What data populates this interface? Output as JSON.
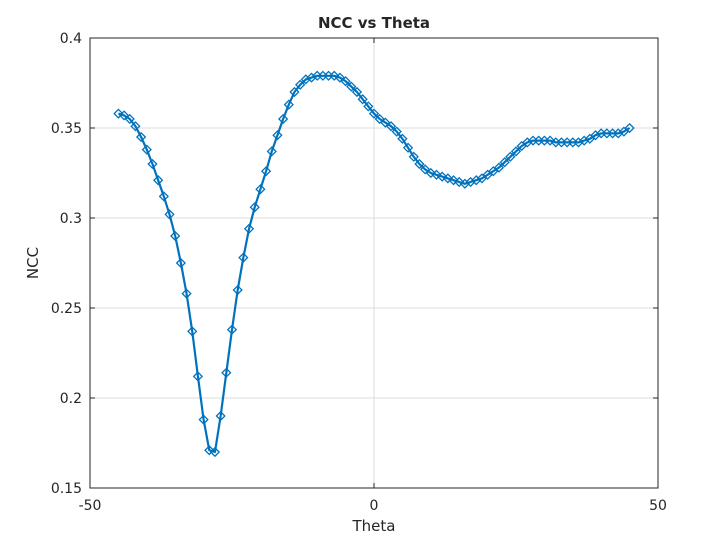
{
  "chart_data": {
    "type": "line",
    "title": "NCC vs Theta",
    "xlabel": "Theta",
    "ylabel": "NCC",
    "xlim": [
      -50,
      50
    ],
    "ylim": [
      0.15,
      0.4
    ],
    "xticks": [
      -50,
      0,
      50
    ],
    "xtick_labels": [
      "-50",
      "0",
      "50"
    ],
    "yticks": [
      0.15,
      0.2,
      0.25,
      0.3,
      0.35,
      0.4
    ],
    "ytick_labels": [
      "0.15",
      "0.2",
      "0.25",
      "0.3",
      "0.35",
      "0.4"
    ],
    "grid": true,
    "marker": "diamond",
    "color": "#0072BD",
    "series": [
      {
        "x": [
          -45,
          -44,
          -43,
          -42,
          -41,
          -40,
          -39,
          -38,
          -37,
          -36,
          -35,
          -34,
          -33,
          -32,
          -31,
          -30,
          -29,
          -28,
          -27,
          -26,
          -25,
          -24,
          -23,
          -22,
          -21,
          -20,
          -19,
          -18,
          -17,
          -16,
          -15,
          -14,
          -13,
          -12,
          -11,
          -10,
          -9,
          -8,
          -7,
          -6,
          -5,
          -4,
          -3,
          -2,
          -1,
          0,
          1,
          2,
          3,
          4,
          5,
          6,
          7,
          8,
          9,
          10,
          11,
          12,
          13,
          14,
          15,
          16,
          17,
          18,
          19,
          20,
          21,
          22,
          23,
          24,
          25,
          26,
          27,
          28,
          29,
          30,
          31,
          32,
          33,
          34,
          35,
          36,
          37,
          38,
          39,
          40,
          41,
          42,
          43,
          44,
          45
        ],
        "y": [
          0.358,
          0.357,
          0.355,
          0.351,
          0.345,
          0.338,
          0.33,
          0.321,
          0.312,
          0.302,
          0.29,
          0.275,
          0.258,
          0.237,
          0.212,
          0.188,
          0.171,
          0.17,
          0.19,
          0.214,
          0.238,
          0.26,
          0.278,
          0.294,
          0.306,
          0.316,
          0.326,
          0.337,
          0.346,
          0.355,
          0.363,
          0.37,
          0.374,
          0.377,
          0.378,
          0.379,
          0.379,
          0.379,
          0.379,
          0.378,
          0.376,
          0.373,
          0.37,
          0.366,
          0.362,
          0.358,
          0.355,
          0.353,
          0.351,
          0.348,
          0.344,
          0.339,
          0.334,
          0.33,
          0.327,
          0.325,
          0.324,
          0.323,
          0.322,
          0.321,
          0.32,
          0.319,
          0.32,
          0.321,
          0.322,
          0.324,
          0.326,
          0.328,
          0.331,
          0.334,
          0.337,
          0.34,
          0.342,
          0.343,
          0.343,
          0.343,
          0.343,
          0.342,
          0.342,
          0.342,
          0.342,
          0.342,
          0.343,
          0.344,
          0.346,
          0.347,
          0.347,
          0.347,
          0.347,
          0.348,
          0.35
        ]
      }
    ]
  }
}
